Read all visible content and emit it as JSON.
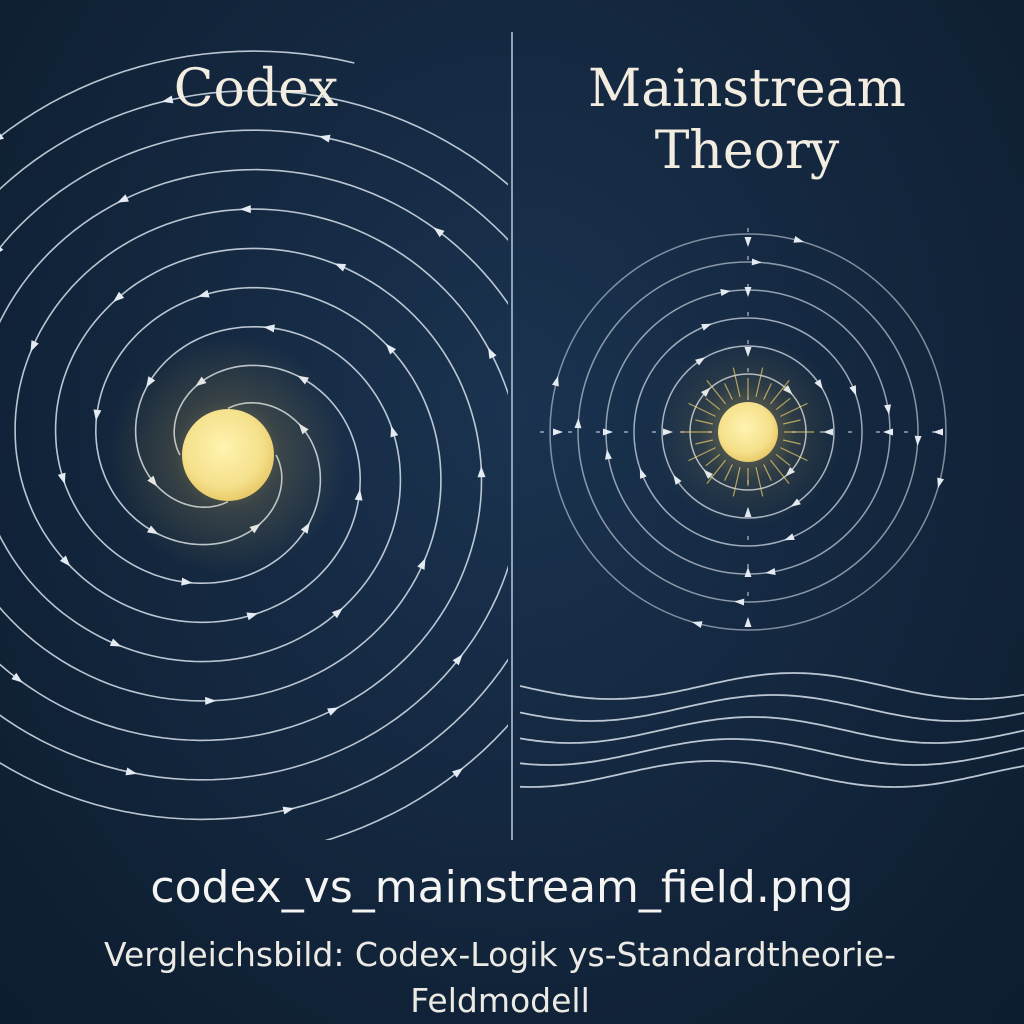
{
  "left_panel": {
    "title": "Codex"
  },
  "right_panel": {
    "title_line1": "Mainstream",
    "title_line2": "Theory"
  },
  "footer": {
    "filename": "codex_vs_mainstream_field.png",
    "caption_line1": "Vergleichsbild: Codex-Logik ys-Standardtheorie-",
    "caption_line2": "Feldmodell"
  },
  "colors": {
    "background": "#142840",
    "field_line": "#d8e2ec",
    "star": "#f5e18c",
    "star_glow": "#f3d66a",
    "divider": "#8fa3b8",
    "text": "#f2ede0"
  },
  "icons": [
    "star-core",
    "spiral-field-arrows",
    "concentric-field-rings",
    "gravitational-waves"
  ]
}
